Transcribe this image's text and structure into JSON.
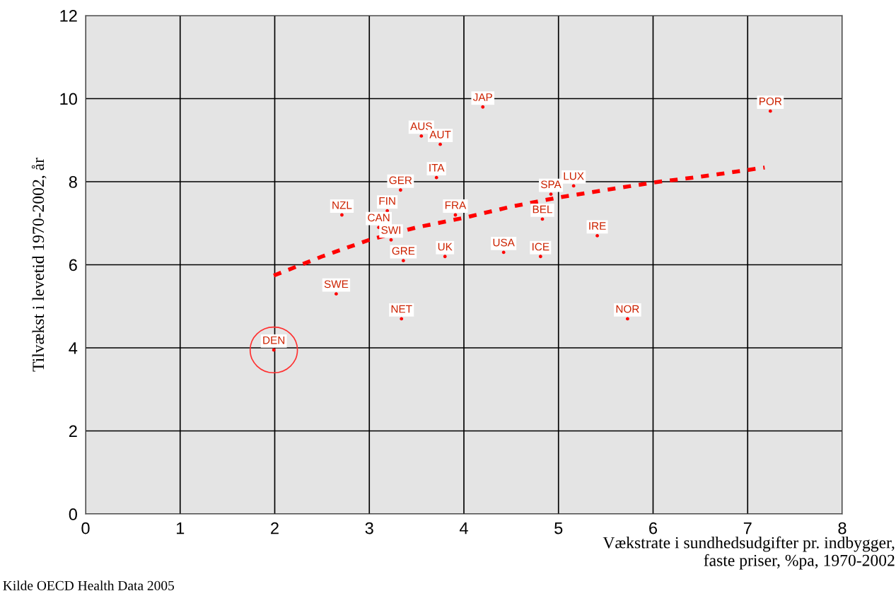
{
  "chart_data": {
    "type": "scatter",
    "xlabel": "Vækstrate i sundhedsudgifter pr. indbygger,\nfaste priser, %pa, 1970-2002",
    "ylabel": "Tilvækst i levetid 1970-2002, år",
    "xlim": [
      0,
      8
    ],
    "xticks": [
      0,
      1,
      2,
      3,
      4,
      5,
      6,
      7,
      8
    ],
    "ylim": [
      0,
      12
    ],
    "yticks": [
      0,
      2,
      4,
      6,
      8,
      10,
      12
    ],
    "grid": true,
    "series": [
      {
        "marker": "circle",
        "color": "#ff0000",
        "x": [
          4.2,
          7.24,
          3.55,
          3.75,
          3.71,
          3.33,
          2.71,
          3.19,
          3.1,
          3.91,
          3.23,
          3.36,
          3.8,
          4.42,
          4.81,
          4.83,
          4.92,
          5.16,
          5.41,
          5.73,
          2.65,
          3.34,
          1.99
        ],
        "values": [
          9.8,
          9.7,
          9.1,
          8.9,
          8.1,
          7.8,
          7.2,
          7.3,
          6.9,
          7.2,
          6.6,
          6.1,
          6.2,
          6.3,
          6.2,
          7.1,
          7.7,
          7.9,
          6.7,
          4.7,
          5.3,
          4.7,
          3.95
        ]
      },
      {
        "type": "line",
        "marker": "none",
        "color": "#ff0000",
        "line_style": "dashed",
        "x": [
          1.99,
          2.5,
          3,
          3.5,
          4,
          4.5,
          5,
          5.5,
          6,
          6.5,
          7.18
        ],
        "values": [
          5.74,
          6.2,
          6.6,
          6.9,
          7.13,
          7.4,
          7.62,
          7.8,
          7.98,
          8.12,
          8.34
        ]
      }
    ],
    "annotations": [
      {
        "text": "JAP",
        "x": 4.2,
        "y": 9.8
      },
      {
        "text": "POR",
        "x": 7.24,
        "y": 9.7
      },
      {
        "text": "AUS",
        "x": 3.55,
        "y": 9.1
      },
      {
        "text": "AUT",
        "x": 3.75,
        "y": 8.9
      },
      {
        "text": "ITA",
        "x": 3.71,
        "y": 8.1
      },
      {
        "text": "GER",
        "x": 3.33,
        "y": 7.8
      },
      {
        "text": "NZL",
        "x": 2.71,
        "y": 7.2
      },
      {
        "text": "FIN",
        "x": 3.19,
        "y": 7.3
      },
      {
        "text": "CAN",
        "x": 3.1,
        "y": 6.9
      },
      {
        "text": "FRA",
        "x": 3.91,
        "y": 7.2
      },
      {
        "text": "SWI",
        "x": 3.23,
        "y": 6.6
      },
      {
        "text": "GRE",
        "x": 3.36,
        "y": 6.1
      },
      {
        "text": "UK",
        "x": 3.8,
        "y": 6.2
      },
      {
        "text": "USA",
        "x": 4.42,
        "y": 6.3
      },
      {
        "text": "ICE",
        "x": 4.81,
        "y": 6.2
      },
      {
        "text": "BEL",
        "x": 4.83,
        "y": 7.1
      },
      {
        "text": "SPA",
        "x": 4.92,
        "y": 7.7
      },
      {
        "text": "LUX",
        "x": 5.16,
        "y": 7.9
      },
      {
        "text": "IRE",
        "x": 5.41,
        "y": 6.7
      },
      {
        "text": "NOR",
        "x": 5.73,
        "y": 4.7
      },
      {
        "text": "SWE",
        "x": 2.65,
        "y": 5.3
      },
      {
        "text": "NET",
        "x": 3.34,
        "y": 4.7
      },
      {
        "text": "DEN",
        "x": 1.99,
        "y": 3.95
      },
      "Kilde OECD Health Data 2005"
    ]
  }
}
